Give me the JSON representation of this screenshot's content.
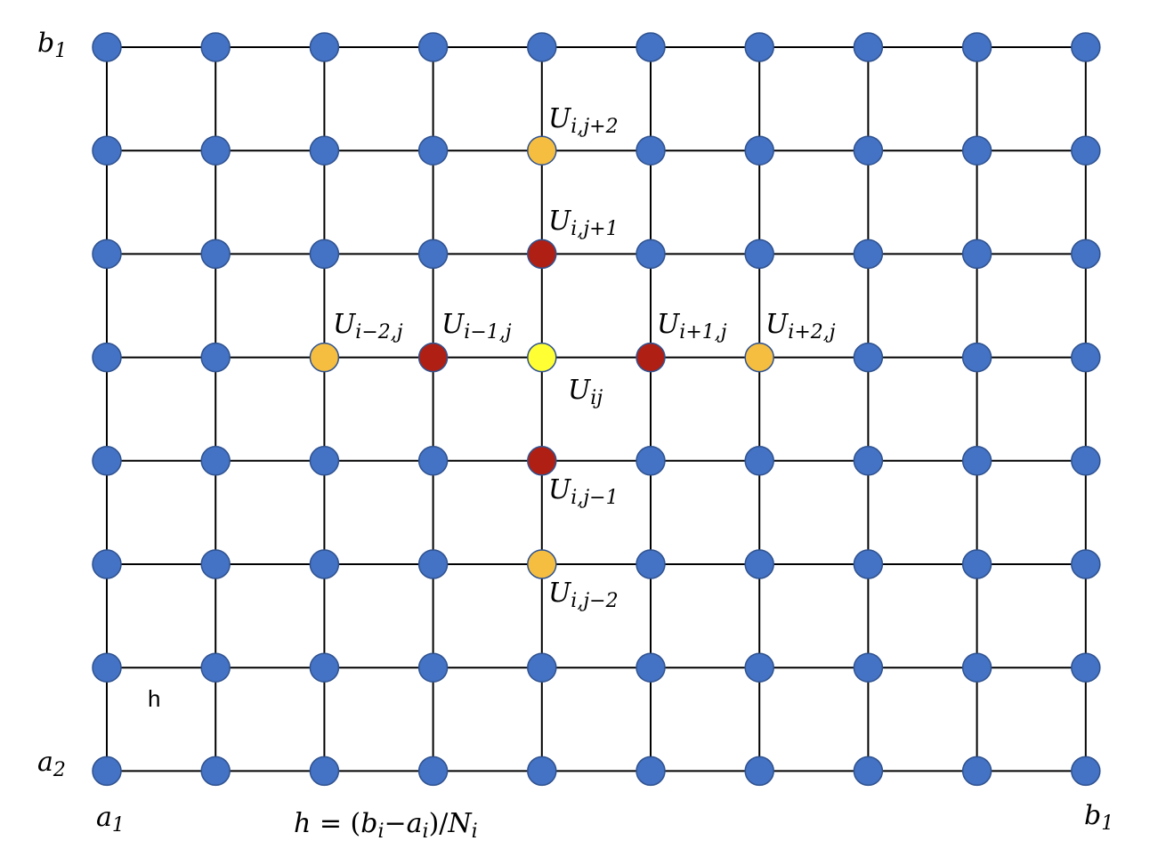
{
  "colors": {
    "grid_line": "#000000",
    "node_default": "#4472C4",
    "node_center": "#FFFF33",
    "node_near": "#B01F14",
    "node_far": "#F5BE41",
    "node_stroke": "#2F528F"
  },
  "grid": {
    "columns": 10,
    "rows": 8,
    "highlights": [
      {
        "col": 4,
        "row": 3,
        "role": "center"
      },
      {
        "col": 3,
        "row": 3,
        "role": "near"
      },
      {
        "col": 5,
        "row": 3,
        "role": "near"
      },
      {
        "col": 4,
        "row": 2,
        "role": "near"
      },
      {
        "col": 4,
        "row": 4,
        "role": "near"
      },
      {
        "col": 2,
        "row": 3,
        "role": "far"
      },
      {
        "col": 6,
        "row": 3,
        "role": "far"
      },
      {
        "col": 4,
        "row": 1,
        "role": "far"
      },
      {
        "col": 4,
        "row": 5,
        "role": "far"
      }
    ]
  },
  "labels": {
    "b1_top": {
      "base": "b",
      "sub": "1"
    },
    "a2": {
      "base": "a",
      "sub": "2"
    },
    "a1": {
      "base": "a",
      "sub": "1"
    },
    "b1_bottom": {
      "base": "b",
      "sub": "1"
    },
    "h_cell": "h",
    "u_ij_plus2": {
      "base": "U",
      "sub": "i,j+2"
    },
    "u_ij_plus1": {
      "base": "U",
      "sub": "i,j+1"
    },
    "u_im2_j": {
      "base": "U",
      "sub": "i−2,j"
    },
    "u_im1_j": {
      "base": "U",
      "sub": "i−1,j"
    },
    "u_ip1_j": {
      "base": "U",
      "sub": "i+1,j"
    },
    "u_ip2_j": {
      "base": "U",
      "sub": "i+2,j"
    },
    "u_ij": {
      "base": "U",
      "sub": "ij"
    },
    "u_ij_minus1": {
      "base": "U",
      "sub": "i,j−1"
    },
    "u_ij_minus2": {
      "base": "U",
      "sub": "i,j−2"
    },
    "formula": {
      "lhs": "h",
      "eq": " = (",
      "b": "b",
      "b_sub": "i",
      "minus": "−",
      "a": "a",
      "a_sub": "i",
      "close": ")/",
      "n": "N",
      "n_sub": "i"
    }
  }
}
